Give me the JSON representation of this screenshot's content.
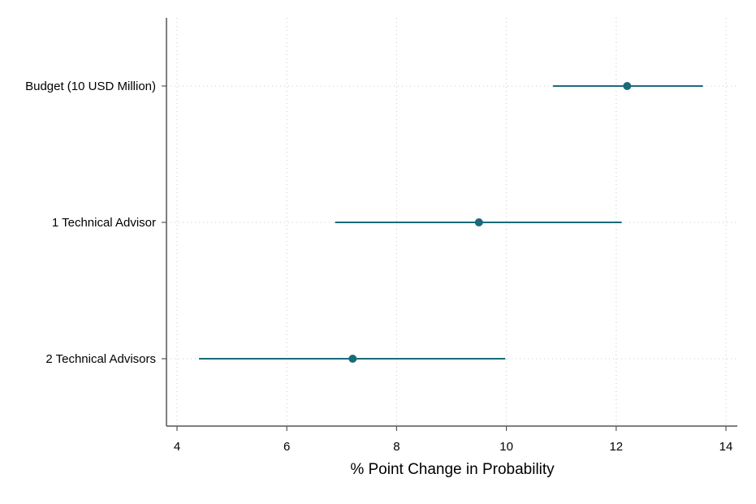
{
  "chart_data": {
    "type": "scatter",
    "title": "",
    "xlabel": "% Point Change in Probability",
    "ylabel": "",
    "xlim": [
      4,
      14
    ],
    "xticks": [
      4,
      6,
      8,
      10,
      12,
      14
    ],
    "xtick_labels": [
      "4",
      "6",
      "8",
      "10",
      "12",
      "14"
    ],
    "grid": true,
    "legend": "none",
    "color": "#1a6a7a",
    "series": [
      {
        "points": [
          {
            "label": "Budget (10 USD Million)",
            "estimate": 12.2,
            "low": 10.85,
            "high": 13.58
          },
          {
            "label": "1 Technical Advisor",
            "estimate": 9.5,
            "low": 6.88,
            "high": 12.1
          },
          {
            "label": "2 Technical Advisors",
            "estimate": 7.2,
            "low": 4.4,
            "high": 9.98
          }
        ]
      }
    ]
  }
}
